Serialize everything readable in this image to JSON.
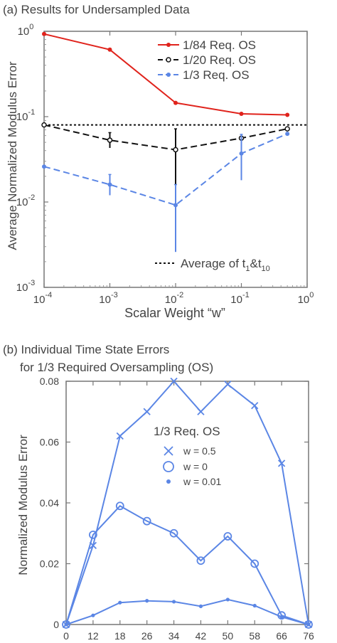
{
  "chart_data": [
    {
      "type": "line",
      "panel_title": "(a) Results for Undersampled Data",
      "xlabel": "Scalar Weight “w”",
      "ylabel": "Average Normalized Modulus Error",
      "xscale": "log",
      "yscale": "log",
      "xlim": [
        0.0001,
        1
      ],
      "ylim": [
        0.001,
        1
      ],
      "x_ticks": [
        {
          "base": "10",
          "exp": "-4"
        },
        {
          "base": "10",
          "exp": "-3"
        },
        {
          "base": "10",
          "exp": "-2"
        },
        {
          "base": "10",
          "exp": "-1"
        },
        {
          "base": "10",
          "exp": "0"
        }
      ],
      "y_ticks": [
        {
          "base": "10",
          "exp": "-3"
        },
        {
          "base": "10",
          "exp": "-2"
        },
        {
          "base": "10",
          "exp": "-1"
        },
        {
          "base": "10",
          "exp": "0"
        }
      ],
      "legend_position": "top-right",
      "x": [
        0.0001,
        0.001,
        0.01,
        0.1,
        0.5
      ],
      "series": [
        {
          "name": "1/84 Req. OS",
          "color": "#e0231c",
          "dash": "solid",
          "marker": "dot",
          "values": [
            0.93,
            0.61,
            0.145,
            0.108,
            0.105
          ]
        },
        {
          "name": "1/20 Req. OS",
          "color": "#111111",
          "dash": "dashed",
          "marker": "open-circle",
          "values": [
            0.08,
            0.053,
            0.041,
            0.056,
            0.072
          ],
          "err_low": [
            0.08,
            0.043,
            0.013,
            0.056,
            0.072
          ],
          "err_high": [
            0.08,
            0.065,
            0.072,
            0.056,
            0.072
          ]
        },
        {
          "name": "1/3 Req. OS",
          "color": "#5b86e5",
          "dash": "dashed",
          "marker": "dot",
          "values": [
            0.026,
            0.016,
            0.0092,
            0.037,
            0.063
          ],
          "err_low": [
            0.026,
            0.012,
            0.0026,
            0.018,
            0.063
          ],
          "err_high": [
            0.026,
            0.021,
            0.016,
            0.062,
            0.063
          ]
        }
      ],
      "reference_line": {
        "label_main": "Average of t",
        "sub1": "1",
        "amp": "&t",
        "sub2": "10",
        "value": 0.08,
        "dash": "dotted",
        "color": "#111111"
      }
    },
    {
      "type": "line",
      "panel_title_line1": "(b) Individual Time State Errors",
      "panel_title_line2": "for 1/3 Required Oversampling (OS)",
      "xlabel": "",
      "ylabel": "Normalized Modulus Error",
      "categories": [
        "0",
        "12",
        "18",
        "26",
        "34",
        "42",
        "50",
        "58",
        "66",
        "76"
      ],
      "y_ticks": [
        "0",
        "0.02",
        "0.04",
        "0.06",
        "0.08"
      ],
      "ylim": [
        0,
        0.08
      ],
      "legend_title": "1/3 Req. OS",
      "legend_position": "upper-middle",
      "color": "#5b86e5",
      "series": [
        {
          "name": "w = 0.5",
          "marker": "x",
          "values": [
            0,
            0.026,
            0.062,
            0.07,
            0.08,
            0.07,
            0.079,
            0.072,
            0.053,
            0
          ]
        },
        {
          "name": "w = 0",
          "marker": "open-circle",
          "values": [
            0,
            0.0295,
            0.039,
            0.034,
            0.03,
            0.021,
            0.029,
            0.02,
            0.003,
            0
          ]
        },
        {
          "name": "w = 0.01",
          "marker": "dot",
          "values": [
            0,
            0.003,
            0.0072,
            0.0078,
            0.0075,
            0.006,
            0.0082,
            0.0062,
            0.0025,
            0
          ]
        }
      ]
    }
  ]
}
